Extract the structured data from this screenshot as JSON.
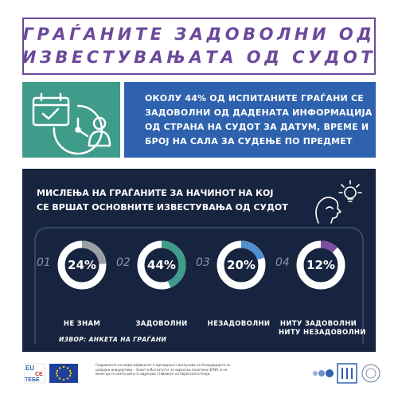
{
  "title": {
    "line1": "ГРАЃАНИТЕ ЗАДОВОЛНИ ОД",
    "line2": "ИЗВЕСТУВАЊАТА ОД СУДОТ"
  },
  "info": {
    "lines": [
      "ОКОЛУ 44% ОД ИСПИТАНИТЕ ГРАЃАНИ СЕ",
      "ЗАДОВОЛНИ ОД ДАДЕНАТА ИНФОРМАЦИЈА",
      "ОД СТРАНА НА СУДОТ ЗА ДАТУМ, ВРЕМЕ И",
      "БРОЈ НА САЛА ЗА СУДЕЊЕ ПО ПРЕДМЕТ"
    ]
  },
  "panel": {
    "title_line1": "МИСЛЕЊА НА ГРАЃАНИТЕ ЗА НАЧИНОТ НА КОЈ",
    "title_line2": "СЕ ВРШАТ ОСНОВНИТЕ ИЗВЕСТУВАЊА ОД СУДОТ",
    "stats": [
      {
        "num": "01",
        "percent": "24%",
        "value": 24,
        "label1": "НЕ ЗНАМ",
        "label2": "",
        "color": "#9aa0a6"
      },
      {
        "num": "02",
        "percent": "44%",
        "value": 44,
        "label1": "ЗАДОВОЛНИ",
        "label2": "",
        "color": "#3f9c8a"
      },
      {
        "num": "03",
        "percent": "20%",
        "value": 20,
        "label1": "НЕЗАДОВОЛНИ",
        "label2": "",
        "color": "#4f8fd0"
      },
      {
        "num": "04",
        "percent": "12%",
        "value": 12,
        "label1": "НИТУ ЗАДОВОЛНИ",
        "label2": "НИТУ НЕЗАДОВОЛНИ",
        "color": "#7b4fa0"
      }
    ],
    "source": "ИЗВОР: АНКЕТА НА ГРАЃАНИ"
  },
  "footer": {
    "logo_text_1": "EU",
    "logo_text_2": "CE",
    "logo_text_3": "ТЕБЕ",
    "note": "Содржината на инфографиконот е одговорност исклучиво на Асоцијацијата за развојни иницијативи – Зенит и Институтот за европски политики (ЕПИ), и не може да се смета дека ги одразува ставовите на Европската Унија."
  },
  "colors": {
    "purple": "#6b4a9b",
    "teal": "#3f9c8a",
    "blue": "#2e62ae",
    "navy": "#17243f"
  }
}
